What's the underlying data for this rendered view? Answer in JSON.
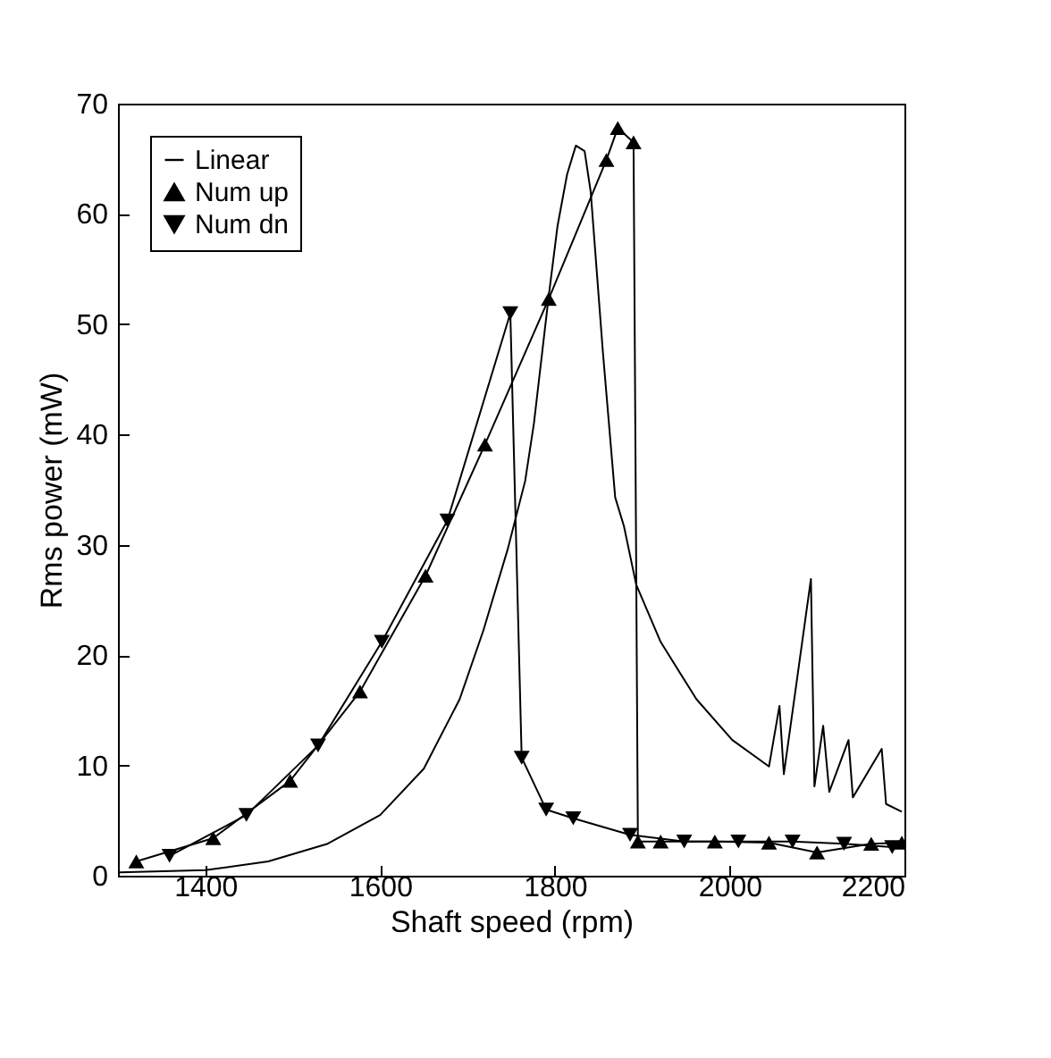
{
  "chart_data": {
    "type": "line",
    "xlabel": "Shaft speed (rpm)",
    "ylabel": "Rms power (mW)",
    "xlim": [
      1300,
      2200
    ],
    "xticks": [
      1400,
      1600,
      1800,
      2000,
      2200
    ],
    "ylim": [
      0,
      70
    ],
    "yticks": [
      0,
      10,
      20,
      30,
      40,
      50,
      60,
      70
    ],
    "grid": false,
    "legend": "top left",
    "line_style": "solid",
    "series": [
      {
        "name": "Linear",
        "color": "#000000",
        "marker": "none",
        "x": [
          1302,
          1400,
          1472,
          1540,
          1600,
          1650,
          1691,
          1718,
          1746,
          1766,
          1776,
          1793,
          1803,
          1814,
          1824,
          1834,
          1841,
          1855,
          1869,
          1879,
          1893,
          1921,
          1962,
          2003,
          2045,
          2057,
          2062,
          2093,
          2097,
          2107,
          2114,
          2136,
          2141,
          2174,
          2179,
          2197
        ],
        "values": [
          0.3,
          0.5,
          1.3,
          2.9,
          5.5,
          9.7,
          16,
          22.2,
          29.6,
          35.8,
          41,
          52.6,
          58.9,
          63.6,
          66.2,
          65.7,
          62,
          47.4,
          34.3,
          31.7,
          26.4,
          21.2,
          16,
          12.3,
          9.9,
          15.4,
          9.2,
          26.9,
          8.1,
          13.6,
          7.6,
          12.3,
          7.1,
          11.5,
          6.5,
          5.8
        ]
      },
      {
        "name": "Num up",
        "color": "#000000",
        "marker": "triangle",
        "x": [
          1321,
          1409,
          1497,
          1577,
          1652,
          1720,
          1793,
          1859,
          1872,
          1890,
          1895,
          1921,
          1983,
          2045,
          2100,
          2162,
          2197
        ],
        "values": [
          1.3,
          3.4,
          8.6,
          16.7,
          27.2,
          39.1,
          52.3,
          64.9,
          67.8,
          66.5,
          3.1,
          3.1,
          3.1,
          3.0,
          2.1,
          2.9,
          3.0
        ]
      },
      {
        "name": "Num dn",
        "color": "#000000",
        "marker": "triangle-down",
        "x": [
          1359,
          1447,
          1529,
          1602,
          1677,
          1749,
          1762,
          1790,
          1821,
          1886,
          1948,
          2010,
          2072,
          2131,
          2186
        ],
        "values": [
          1.8,
          5.5,
          11.8,
          21.2,
          32.2,
          51,
          10.7,
          6,
          5.2,
          3.7,
          3.1,
          3.1,
          3.1,
          2.9,
          2.6
        ]
      }
    ]
  }
}
